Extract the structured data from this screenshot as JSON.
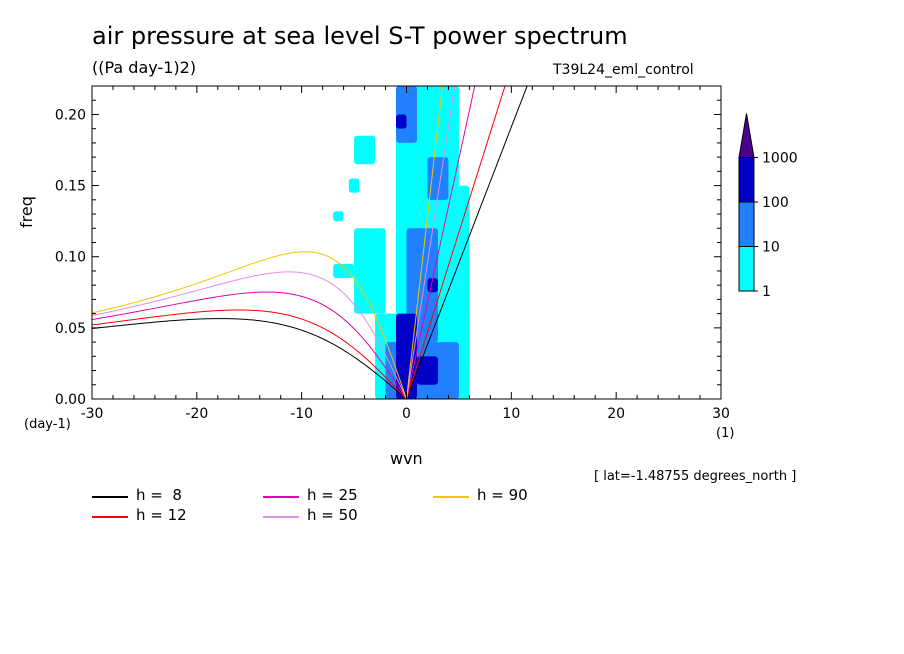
{
  "header": {
    "title": "air pressure at sea level S-T power spectrum",
    "units": "((Pa day-1)2)",
    "run": "T39L24_eml_control"
  },
  "footer": {
    "lat_note": "[ lat=-1.48755 degrees_north ]"
  },
  "chart_data": {
    "type": "heatmap",
    "xlabel": "wvn",
    "x_unit": "(1)",
    "ylabel": "freq",
    "y_unit": "(day-1)",
    "xlim": [
      -30,
      30
    ],
    "ylim": [
      0,
      0.22
    ],
    "x_ticks": [
      -30,
      -20,
      -10,
      0,
      10,
      20,
      30
    ],
    "x_tick_labels": [
      "-30",
      "-20",
      "-10",
      "0",
      "10",
      "20",
      "30"
    ],
    "y_ticks": [
      0,
      0.05,
      0.1,
      0.15,
      0.2
    ],
    "y_tick_labels": [
      "0.00",
      "0.05",
      "0.10",
      "0.15",
      "0.20"
    ],
    "colorbar": {
      "levels": [
        "1",
        "10",
        "100",
        "1000"
      ],
      "colors": [
        "#00ffff",
        "#2080ff",
        "#0000c8",
        "#4a0090"
      ],
      "extend": "max"
    },
    "field_blobs": [
      {
        "x0": -1,
        "x1": 5,
        "y0": 0.0,
        "y1": 0.22,
        "level": 0
      },
      {
        "x0": -3,
        "x1": 6,
        "y0": 0.0,
        "y1": 0.06,
        "level": 0
      },
      {
        "x0": -5,
        "x1": -2,
        "y0": 0.06,
        "y1": 0.12,
        "level": 0
      },
      {
        "x0": 5,
        "x1": 6,
        "y0": 0.02,
        "y1": 0.15,
        "level": 0
      },
      {
        "x0": -3,
        "x1": -2,
        "y0": 0.005,
        "y1": 0.015,
        "level": 0
      },
      {
        "x0": -7,
        "x1": -5,
        "y0": 0.085,
        "y1": 0.095,
        "level": 0
      },
      {
        "x0": -5,
        "x1": -3,
        "y0": 0.165,
        "y1": 0.185,
        "level": 0
      },
      {
        "x0": -5.5,
        "x1": -4.5,
        "y0": 0.145,
        "y1": 0.155,
        "level": 0
      },
      {
        "x0": -7,
        "x1": -6,
        "y0": 0.125,
        "y1": 0.132,
        "level": 0
      },
      {
        "x0": 0,
        "x1": 3,
        "y0": 0.04,
        "y1": 0.12,
        "level": 1
      },
      {
        "x0": -2,
        "x1": 5,
        "y0": 0.0,
        "y1": 0.04,
        "level": 1
      },
      {
        "x0": -1,
        "x1": 1,
        "y0": 0.18,
        "y1": 0.22,
        "level": 1
      },
      {
        "x0": 2,
        "x1": 4,
        "y0": 0.14,
        "y1": 0.17,
        "level": 1
      },
      {
        "x0": -1,
        "x1": 1,
        "y0": 0.0,
        "y1": 0.06,
        "level": 2
      },
      {
        "x0": 1,
        "x1": 3,
        "y0": 0.01,
        "y1": 0.03,
        "level": 2
      },
      {
        "x0": -1,
        "x1": 0,
        "y0": 0.19,
        "y1": 0.2,
        "level": 2
      },
      {
        "x0": 2,
        "x1": 3,
        "y0": 0.075,
        "y1": 0.085,
        "level": 2
      }
    ],
    "series": [
      {
        "name": "h =  8",
        "color": "#000000",
        "h": 8
      },
      {
        "name": "h = 12",
        "color": "#ff0000",
        "h": 12
      },
      {
        "name": "h = 25",
        "color": "#e000b0",
        "h": 25
      },
      {
        "name": "h = 50",
        "color": "#e090e0",
        "h": 50
      },
      {
        "name": "h = 90",
        "color": "#f0c800",
        "h": 90
      }
    ]
  }
}
